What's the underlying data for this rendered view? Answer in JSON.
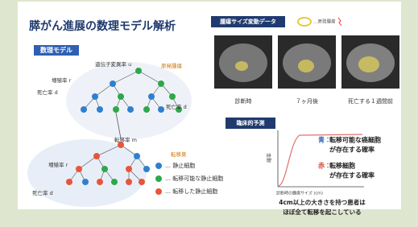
{
  "title": "膵がん進展の数理モデル解析",
  "model": {
    "heading": "数理モデル",
    "labels": [
      "遺伝子変異率 u",
      "原発腫瘍",
      "増殖率 r",
      "死亡率 d",
      "死亡率 d",
      "転移率 m",
      "転移巣",
      "増殖率 r",
      "死亡率 d"
    ],
    "legend": [
      "… 静止細胞",
      "… 転移可能な静止細胞",
      "… 転移した静止細胞"
    ]
  },
  "imaging": {
    "heading": "腫瘍サイズ変動データ",
    "key": "…原発腫瘍",
    "captions": [
      "診断時",
      "７ヶ月後",
      "死亡する１週間前"
    ]
  },
  "prediction": {
    "heading": "臨床的予測",
    "y_label": "確率",
    "x_label": "診断時の腫瘍サイズ (cm)",
    "notes": [
      {
        "key": "青：",
        "lines": [
          "転移可能な癌細胞",
          "が存在する確率"
        ]
      },
      {
        "key": "赤：",
        "lines": [
          "転移細胞",
          "が存在する確率"
        ]
      }
    ],
    "conclusion": [
      "4cm以上の大きさを持つ患者は",
      "ほぼ全て転移を起こしている"
    ]
  }
}
